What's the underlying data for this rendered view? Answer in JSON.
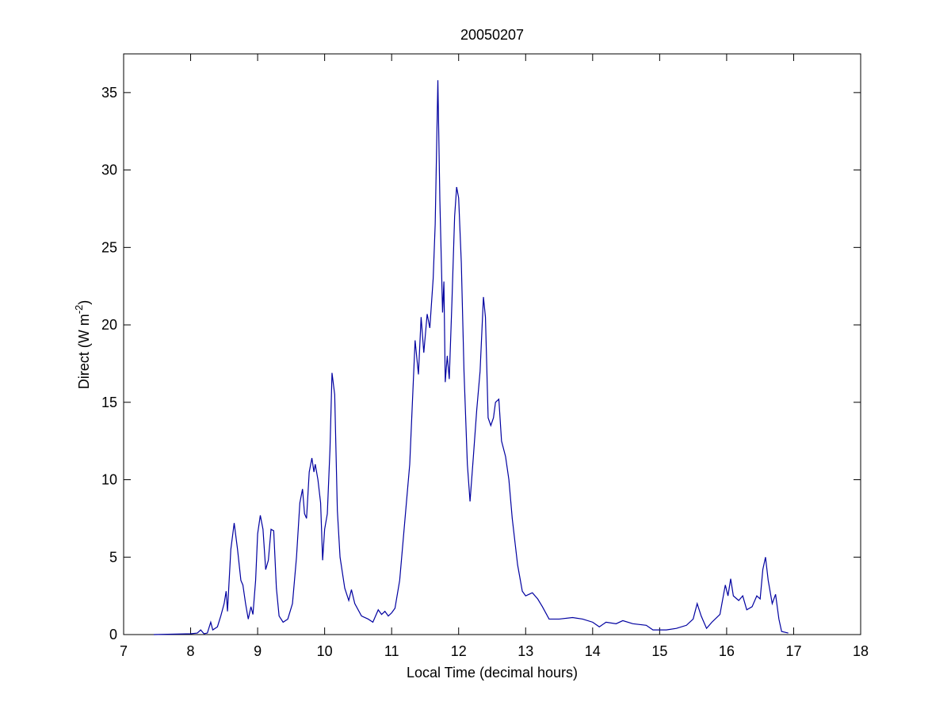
{
  "chart_data": {
    "type": "line",
    "title": "20050207",
    "xlabel": "Local Time (decimal hours)",
    "ylabel": [
      "Direct (W m",
      "-2",
      ")"
    ],
    "xlim": [
      7,
      18
    ],
    "xticks": [
      7,
      8,
      9,
      10,
      11,
      12,
      13,
      14,
      15,
      16,
      17,
      18
    ],
    "ylim": [
      0,
      37.5
    ],
    "yticks": [
      0,
      5,
      10,
      15,
      20,
      25,
      30,
      35
    ],
    "grid": false,
    "series": [
      {
        "color": "#0000a0",
        "x": [
          7.45,
          8.0,
          8.1,
          8.15,
          8.2,
          8.25,
          8.3,
          8.33,
          8.4,
          8.45,
          8.5,
          8.53,
          8.55,
          8.6,
          8.65,
          8.7,
          8.75,
          8.78,
          8.82,
          8.86,
          8.9,
          8.93,
          8.97,
          9.0,
          9.04,
          9.08,
          9.12,
          9.16,
          9.2,
          9.24,
          9.28,
          9.32,
          9.38,
          9.45,
          9.52,
          9.58,
          9.63,
          9.67,
          9.7,
          9.73,
          9.77,
          9.81,
          9.84,
          9.86,
          9.9,
          9.94,
          9.97,
          10.0,
          10.04,
          10.08,
          10.11,
          10.15,
          10.19,
          10.23,
          10.3,
          10.36,
          10.4,
          10.45,
          10.55,
          10.65,
          10.72,
          10.8,
          10.85,
          10.9,
          10.95,
          11.0,
          11.05,
          11.12,
          11.2,
          11.27,
          11.31,
          11.35,
          11.4,
          11.44,
          11.48,
          11.53,
          11.57,
          11.62,
          11.65,
          11.69,
          11.72,
          11.76,
          11.78,
          11.8,
          11.83,
          11.86,
          11.9,
          11.94,
          11.97,
          12.0,
          12.04,
          12.08,
          12.13,
          12.17,
          12.22,
          12.27,
          12.32,
          12.37,
          12.4,
          12.44,
          12.48,
          12.52,
          12.55,
          12.6,
          12.64,
          12.7,
          12.75,
          12.8,
          12.88,
          12.95,
          13.0,
          13.05,
          13.1,
          13.18,
          13.25,
          13.35,
          13.5,
          13.7,
          13.85,
          14.0,
          14.1,
          14.2,
          14.35,
          14.45,
          14.6,
          14.8,
          14.9,
          15.1,
          15.25,
          15.4,
          15.5,
          15.56,
          15.62,
          15.7,
          15.78,
          15.9,
          15.98,
          16.02,
          16.06,
          16.1,
          16.18,
          16.24,
          16.3,
          16.38,
          16.45,
          16.5,
          16.54,
          16.58,
          16.62,
          16.68,
          16.73,
          16.78,
          16.82,
          16.92
        ],
        "values": [
          0,
          0.05,
          0.1,
          0.3,
          0.05,
          0.1,
          0.8,
          0.3,
          0.5,
          1.2,
          2.0,
          2.8,
          1.5,
          5.5,
          7.2,
          5.5,
          3.5,
          3.2,
          2.0,
          1.0,
          1.8,
          1.3,
          3.5,
          6.5,
          7.7,
          6.8,
          4.2,
          4.8,
          6.8,
          6.7,
          3.0,
          1.2,
          0.8,
          1.0,
          2.0,
          5.0,
          8.5,
          9.4,
          7.8,
          7.5,
          10.5,
          11.4,
          10.5,
          11.0,
          10.0,
          8.5,
          4.8,
          6.8,
          7.8,
          12.0,
          16.9,
          15.5,
          8.0,
          5.0,
          3.0,
          2.2,
          2.9,
          2.0,
          1.2,
          1.0,
          0.8,
          1.6,
          1.3,
          1.5,
          1.2,
          1.4,
          1.7,
          3.5,
          7.5,
          11.0,
          15.0,
          19.0,
          16.8,
          20.5,
          18.2,
          20.7,
          19.8,
          23.0,
          26.5,
          35.8,
          28.0,
          20.8,
          22.8,
          16.3,
          18.0,
          16.5,
          21.5,
          27.0,
          28.9,
          28.2,
          24.0,
          17.0,
          11.0,
          8.6,
          11.5,
          14.5,
          17.0,
          21.8,
          20.5,
          14.0,
          13.5,
          14.0,
          15.0,
          15.2,
          12.5,
          11.5,
          10.0,
          7.5,
          4.5,
          2.8,
          2.5,
          2.6,
          2.7,
          2.3,
          1.8,
          1.0,
          1.0,
          1.1,
          1.0,
          0.8,
          0.5,
          0.8,
          0.7,
          0.9,
          0.7,
          0.6,
          0.3,
          0.3,
          0.4,
          0.6,
          1.0,
          2.0,
          1.2,
          0.4,
          0.8,
          1.3,
          3.2,
          2.5,
          3.6,
          2.5,
          2.2,
          2.5,
          1.6,
          1.8,
          2.5,
          2.3,
          4.2,
          5.0,
          3.5,
          2.0,
          2.6,
          1.0,
          0.2,
          0.1
        ]
      }
    ]
  }
}
